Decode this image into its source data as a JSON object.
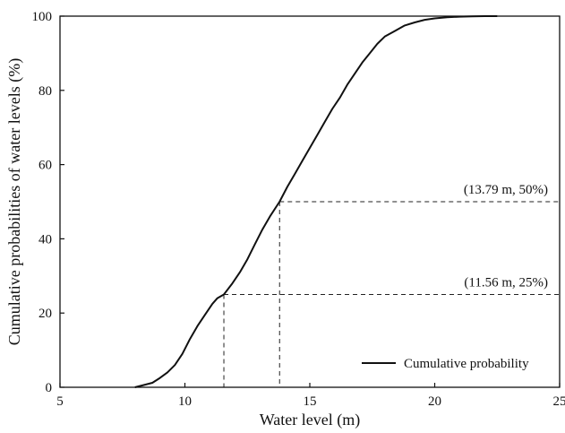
{
  "chart_data": {
    "type": "line",
    "xlabel": "Water level (m)",
    "ylabel": "Cumulative probabilities of water levels (%)",
    "xlim": [
      5,
      25
    ],
    "ylim": [
      0,
      100
    ],
    "xticks": [
      5,
      10,
      15,
      20,
      25
    ],
    "yticks": [
      0,
      20,
      40,
      60,
      80,
      100
    ],
    "grid": false,
    "legend": {
      "position": "bottom-right",
      "entries": [
        "Cumulative probability"
      ]
    },
    "series": [
      {
        "name": "Cumulative probability",
        "x": [
          8.0,
          8.3,
          8.7,
          9.0,
          9.3,
          9.6,
          9.9,
          10.2,
          10.5,
          10.8,
          11.1,
          11.3,
          11.56,
          11.9,
          12.2,
          12.5,
          12.8,
          13.1,
          13.4,
          13.79,
          14.1,
          14.4,
          14.7,
          15.0,
          15.3,
          15.6,
          15.9,
          16.2,
          16.5,
          16.8,
          17.1,
          17.4,
          17.7,
          18.0,
          18.4,
          18.8,
          19.2,
          19.6,
          20.0,
          20.5,
          21.0,
          21.5,
          22.0,
          22.5
        ],
        "y": [
          0,
          0.5,
          1.2,
          2.5,
          4,
          6,
          9,
          13,
          16.5,
          19.5,
          22.5,
          24,
          25,
          28,
          31,
          34.5,
          38.5,
          42.5,
          46,
          50,
          54,
          57.5,
          61,
          64.5,
          68,
          71.5,
          75,
          78,
          81.5,
          84.5,
          87.5,
          90,
          92.5,
          94.5,
          96,
          97.5,
          98.3,
          99,
          99.4,
          99.7,
          99.85,
          99.95,
          100,
          100
        ]
      }
    ],
    "annotations": [
      {
        "text": "(13.79 m, 50%)",
        "x": 13.79,
        "y": 50
      },
      {
        "text": "(11.56 m, 25%)",
        "x": 11.56,
        "y": 25
      }
    ]
  }
}
